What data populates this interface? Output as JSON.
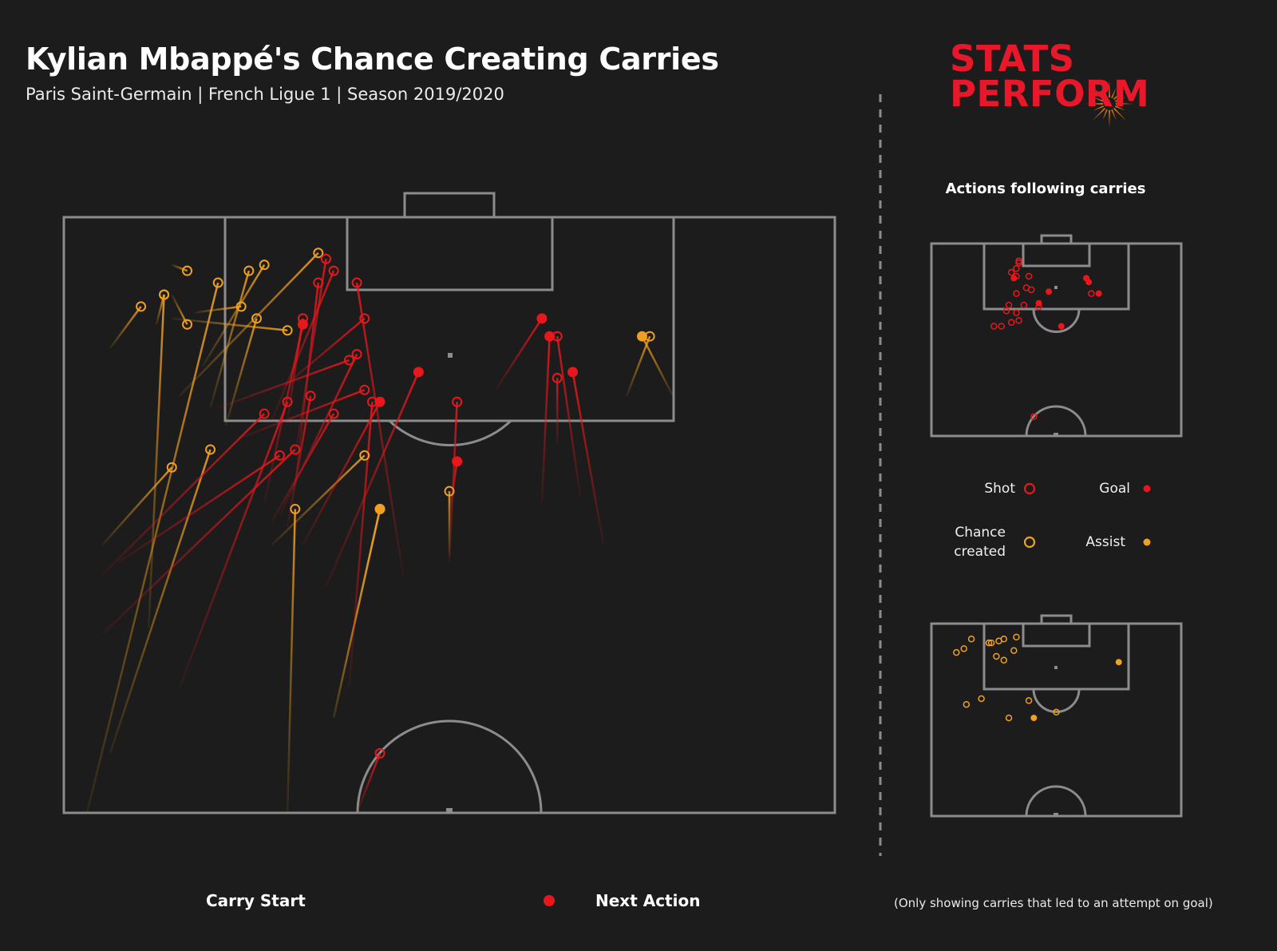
{
  "header": {
    "title": "Kylian Mbappé's Chance Creating Carries",
    "subtitle": "Paris Saint-Germain | French Ligue 1 | Season 2019/2020"
  },
  "brand": {
    "line1": "STATS",
    "line2": "PERFORM",
    "red": "#e8172a",
    "orange": "#f0820f"
  },
  "colors": {
    "background": "#1c1c1c",
    "pitch_lines": "#8c8c8c",
    "shot_goal": "#e8171c",
    "chance_assist": "#f0a020"
  },
  "side_panel": {
    "heading": "Actions following carries",
    "legend": [
      {
        "label": "Shot",
        "type": "shot",
        "marker": "hollow"
      },
      {
        "label": "Goal",
        "type": "goal",
        "marker": "filled"
      },
      {
        "label_line1": "Chance",
        "label_line2": "created",
        "type": "chance",
        "marker": "hollow"
      },
      {
        "label": "Assist",
        "type": "assist",
        "marker": "filled"
      }
    ]
  },
  "footer": {
    "carry_start": "Carry Start",
    "next_action": "Next Action",
    "note": "(Only showing carries that led to an attempt on goal)"
  },
  "chart_data": [
    {
      "type": "scatter",
      "name_note": "main half-pitch, carry lines from start to next action",
      "units": "pitch coordinates: x across width 0-100 (left to right), y distance from goal line 0-100 toward halfway line",
      "carries": [
        {
          "action": "chance",
          "start": [
            6,
            22
          ],
          "end": [
            10,
            15
          ]
        },
        {
          "action": "chance",
          "start": [
            12,
            18
          ],
          "end": [
            13,
            13
          ]
        },
        {
          "action": "chance",
          "start": [
            14,
            8
          ],
          "end": [
            16,
            9
          ]
        },
        {
          "action": "chance",
          "start": [
            14,
            13
          ],
          "end": [
            16,
            18
          ]
        },
        {
          "action": "chance",
          "start": [
            17,
            16
          ],
          "end": [
            23,
            15
          ]
        },
        {
          "action": "chance",
          "start": [
            5,
            55
          ],
          "end": [
            14,
            42
          ]
        },
        {
          "action": "chance",
          "start": [
            11,
            69
          ],
          "end": [
            13,
            13
          ]
        },
        {
          "action": "chance",
          "start": [
            3,
            100
          ],
          "end": [
            20,
            11
          ]
        },
        {
          "action": "chance",
          "start": [
            6,
            90
          ],
          "end": [
            19,
            39
          ]
        },
        {
          "action": "chance",
          "start": [
            19,
            32
          ],
          "end": [
            24,
            9
          ]
        },
        {
          "action": "chance",
          "start": [
            15,
            30
          ],
          "end": [
            33,
            6
          ]
        },
        {
          "action": "chance",
          "start": [
            18,
            25
          ],
          "end": [
            26,
            8
          ]
        },
        {
          "action": "chance",
          "start": [
            21,
            35
          ],
          "end": [
            25,
            17
          ]
        },
        {
          "action": "chance",
          "start": [
            14,
            17
          ],
          "end": [
            29,
            19
          ]
        },
        {
          "action": "chance",
          "start": [
            27,
            55
          ],
          "end": [
            39,
            40
          ]
        },
        {
          "action": "chance",
          "start": [
            29,
            100
          ],
          "end": [
            30,
            49
          ]
        },
        {
          "action": "chance",
          "start": [
            35,
            84
          ],
          "end": [
            41,
            49
          ]
        },
        {
          "action": "chance",
          "start": [
            50,
            57
          ],
          "end": [
            50,
            46
          ]
        },
        {
          "action": "chance",
          "start": [
            73,
            30
          ],
          "end": [
            76,
            20
          ]
        },
        {
          "action": "assist",
          "start": [
            35,
            84
          ],
          "end": [
            41,
            49
          ]
        },
        {
          "action": "assist",
          "start": [
            79,
            30
          ],
          "end": [
            75,
            20
          ]
        },
        {
          "action": "shot",
          "start": [
            27,
            34
          ],
          "end": [
            35,
            9
          ]
        },
        {
          "action": "shot",
          "start": [
            30,
            40
          ],
          "end": [
            34,
            7
          ]
        },
        {
          "action": "shot",
          "start": [
            30,
            45
          ],
          "end": [
            33,
            11
          ]
        },
        {
          "action": "shot",
          "start": [
            29,
            34
          ],
          "end": [
            31,
            17
          ]
        },
        {
          "action": "shot",
          "start": [
            28,
            29
          ],
          "end": [
            39,
            17
          ]
        },
        {
          "action": "shot",
          "start": [
            28,
            50
          ],
          "end": [
            38,
            23
          ]
        },
        {
          "action": "shot",
          "start": [
            29,
            52
          ],
          "end": [
            32,
            30
          ]
        },
        {
          "action": "shot",
          "start": [
            15,
            79
          ],
          "end": [
            29,
            31
          ]
        },
        {
          "action": "shot",
          "start": [
            5,
            60
          ],
          "end": [
            26,
            33
          ]
        },
        {
          "action": "shot",
          "start": [
            5,
            70
          ],
          "end": [
            30,
            39
          ]
        },
        {
          "action": "shot",
          "start": [
            7,
            58
          ],
          "end": [
            28,
            40
          ]
        },
        {
          "action": "shot",
          "start": [
            20,
            32
          ],
          "end": [
            37,
            24
          ]
        },
        {
          "action": "shot",
          "start": [
            23,
            37
          ],
          "end": [
            39,
            29
          ]
        },
        {
          "action": "shot",
          "start": [
            27,
            51
          ],
          "end": [
            35,
            33
          ]
        },
        {
          "action": "shot",
          "start": [
            44,
            60
          ],
          "end": [
            38,
            11
          ]
        },
        {
          "action": "shot",
          "start": [
            38,
            100
          ],
          "end": [
            41,
            90
          ]
        },
        {
          "action": "shot",
          "start": [
            50,
            58
          ],
          "end": [
            51,
            31
          ]
        },
        {
          "action": "shot",
          "start": [
            64,
            38
          ],
          "end": [
            64,
            27
          ]
        },
        {
          "action": "shot",
          "start": [
            67,
            47
          ],
          "end": [
            64,
            20
          ]
        },
        {
          "action": "shot",
          "start": [
            37,
            79
          ],
          "end": [
            40,
            31
          ]
        },
        {
          "action": "goal",
          "start": [
            26,
            48
          ],
          "end": [
            31,
            18
          ]
        },
        {
          "action": "goal",
          "start": [
            34,
            62
          ],
          "end": [
            46,
            26
          ]
        },
        {
          "action": "goal",
          "start": [
            31,
            55
          ],
          "end": [
            41,
            31
          ]
        },
        {
          "action": "goal",
          "start": [
            50,
            50
          ],
          "end": [
            51,
            41
          ]
        },
        {
          "action": "goal",
          "start": [
            56,
            29
          ],
          "end": [
            62,
            17
          ]
        },
        {
          "action": "goal",
          "start": [
            62,
            48
          ],
          "end": [
            63,
            20
          ]
        },
        {
          "action": "goal",
          "start": [
            70,
            55
          ],
          "end": [
            66,
            26
          ]
        }
      ]
    },
    {
      "type": "scatter",
      "name_note": "mini pitch - shots and goals",
      "points": [
        {
          "type": "shot",
          "x": 35,
          "y": 9
        },
        {
          "type": "shot",
          "x": 35,
          "y": 10
        },
        {
          "type": "shot",
          "x": 34,
          "y": 13
        },
        {
          "type": "shot",
          "x": 32,
          "y": 15
        },
        {
          "type": "shot",
          "x": 34,
          "y": 17
        },
        {
          "type": "shot",
          "x": 39,
          "y": 17
        },
        {
          "type": "shot",
          "x": 40,
          "y": 24
        },
        {
          "type": "shot",
          "x": 38,
          "y": 23
        },
        {
          "type": "shot",
          "x": 34,
          "y": 26
        },
        {
          "type": "shot",
          "x": 37,
          "y": 32
        },
        {
          "type": "shot",
          "x": 31,
          "y": 32
        },
        {
          "type": "shot",
          "x": 30,
          "y": 35
        },
        {
          "type": "shot",
          "x": 34,
          "y": 36
        },
        {
          "type": "shot",
          "x": 32,
          "y": 41
        },
        {
          "type": "shot",
          "x": 35,
          "y": 40
        },
        {
          "type": "shot",
          "x": 25,
          "y": 43
        },
        {
          "type": "shot",
          "x": 28,
          "y": 43
        },
        {
          "type": "shot",
          "x": 43,
          "y": 33
        },
        {
          "type": "shot",
          "x": 64,
          "y": 26
        },
        {
          "type": "shot",
          "x": 41,
          "y": 90
        },
        {
          "type": "goal",
          "x": 33,
          "y": 18
        },
        {
          "type": "goal",
          "x": 47,
          "y": 25
        },
        {
          "type": "goal",
          "x": 43,
          "y": 31
        },
        {
          "type": "goal",
          "x": 52,
          "y": 43
        },
        {
          "type": "goal",
          "x": 62,
          "y": 18
        },
        {
          "type": "goal",
          "x": 63,
          "y": 20
        },
        {
          "type": "goal",
          "x": 67,
          "y": 26
        }
      ]
    },
    {
      "type": "scatter",
      "name_note": "mini pitch - chances created and assists",
      "points": [
        {
          "type": "chance",
          "x": 10,
          "y": 15
        },
        {
          "type": "chance",
          "x": 13,
          "y": 13
        },
        {
          "type": "chance",
          "x": 16,
          "y": 8
        },
        {
          "type": "chance",
          "x": 23,
          "y": 10
        },
        {
          "type": "chance",
          "x": 24,
          "y": 10
        },
        {
          "type": "chance",
          "x": 27,
          "y": 9
        },
        {
          "type": "chance",
          "x": 29,
          "y": 8
        },
        {
          "type": "chance",
          "x": 34,
          "y": 7
        },
        {
          "type": "chance",
          "x": 26,
          "y": 17
        },
        {
          "type": "chance",
          "x": 29,
          "y": 19
        },
        {
          "type": "chance",
          "x": 33,
          "y": 14
        },
        {
          "type": "chance",
          "x": 14,
          "y": 42
        },
        {
          "type": "chance",
          "x": 20,
          "y": 39
        },
        {
          "type": "chance",
          "x": 31,
          "y": 49
        },
        {
          "type": "chance",
          "x": 39,
          "y": 40
        },
        {
          "type": "chance",
          "x": 50,
          "y": 46
        },
        {
          "type": "assist",
          "x": 75,
          "y": 20
        },
        {
          "type": "assist",
          "x": 41,
          "y": 49
        }
      ]
    }
  ]
}
